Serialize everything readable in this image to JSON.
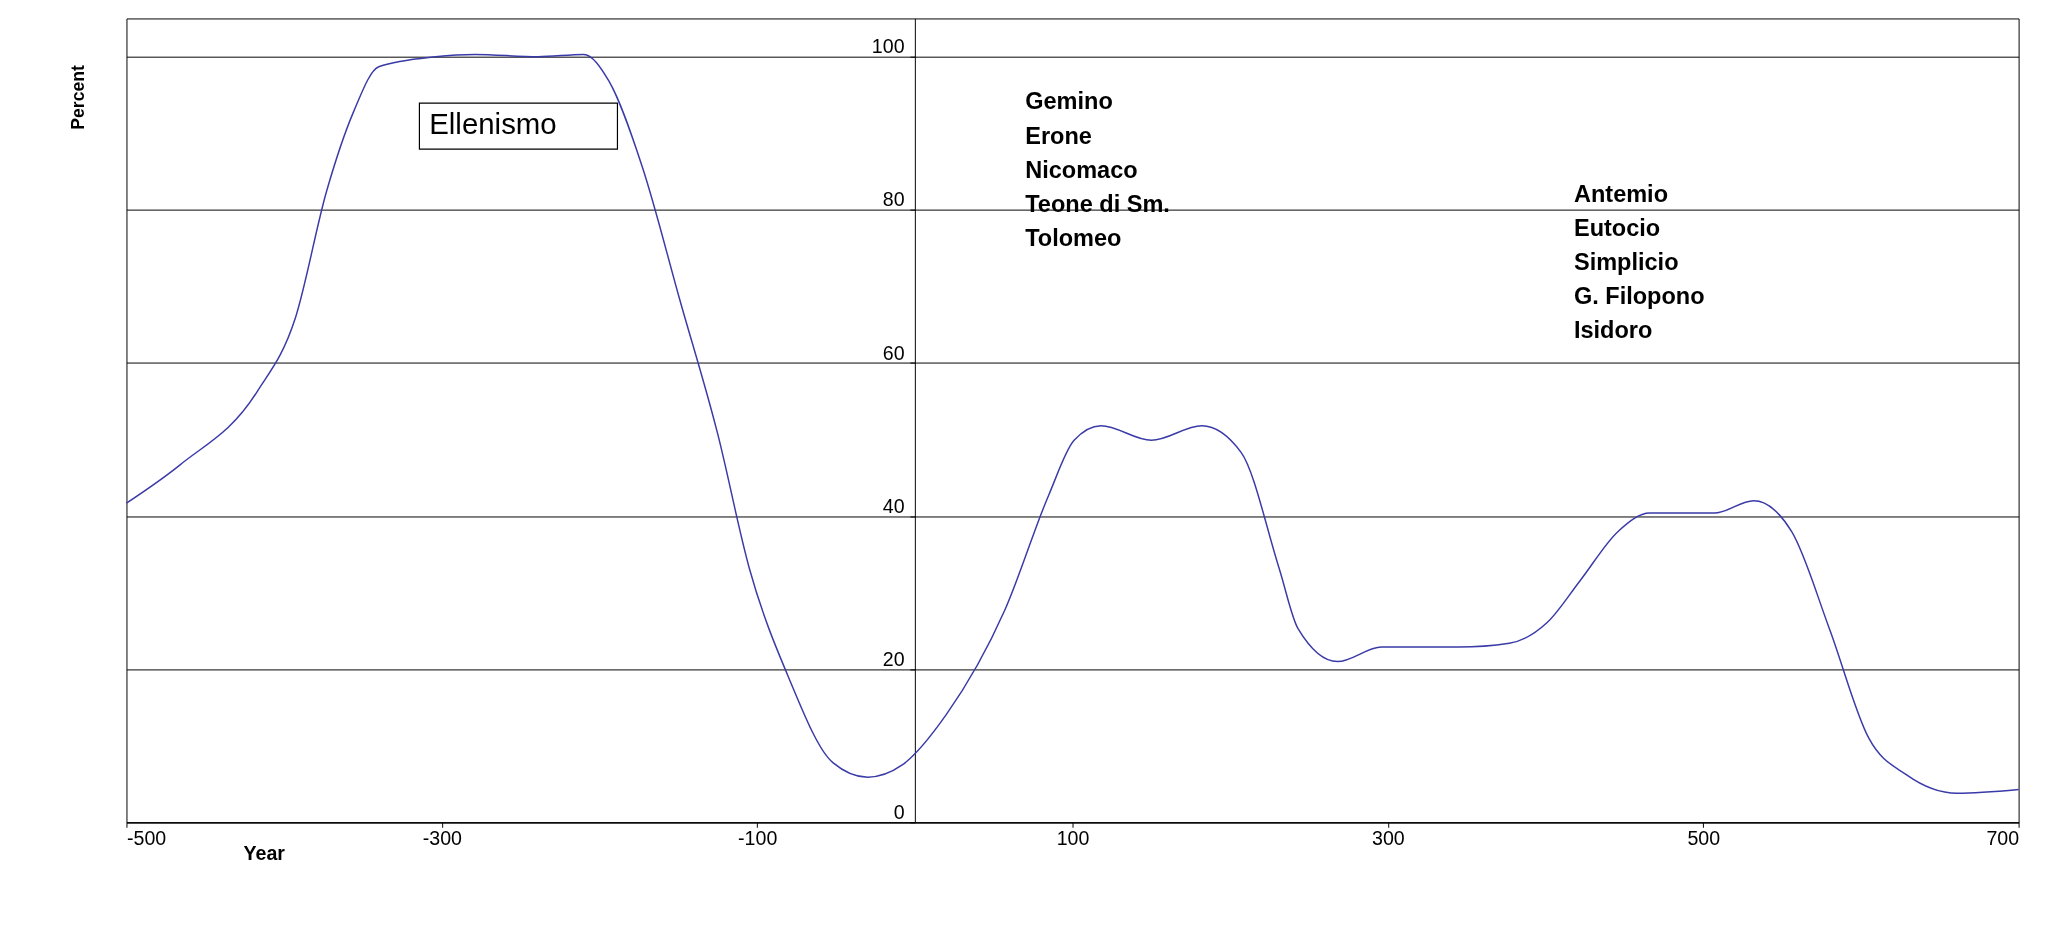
{
  "chart_data": {
    "type": "line",
    "xlabel": "Year",
    "ylabel": "Percent",
    "x": [
      -500,
      -466,
      -417,
      -393,
      -373,
      -356,
      -340,
      -304,
      -279,
      -239,
      -210,
      -194,
      -173,
      -149,
      -125,
      -105,
      -80,
      -52,
      -30,
      -8,
      20,
      57,
      85,
      101,
      118,
      150,
      182,
      207,
      231,
      243,
      268,
      296,
      345,
      377,
      401,
      422,
      446,
      466,
      507,
      532,
      556,
      580,
      605,
      629,
      661,
      700
    ],
    "series": [
      {
        "color": "#3a3aa8",
        "values": [
          41.7,
          46.7,
          56.3,
          65.8,
          82.5,
          92.8,
          98.7,
          100,
          100.3,
          100,
          100.3,
          96.8,
          85.7,
          68.2,
          50.7,
          33.2,
          18.9,
          7.8,
          5.9,
          7.5,
          14.1,
          27.7,
          42.8,
          49.9,
          51.8,
          49.9,
          51.8,
          48.3,
          33.2,
          25.3,
          21.0,
          22.9,
          22.9,
          23.4,
          26.1,
          31.6,
          38.0,
          40.4,
          40.4,
          42.0,
          38.0,
          25.3,
          11.0,
          6.2,
          3.8,
          4.3
        ]
      }
    ],
    "xlim": [
      -500,
      700
    ],
    "xticks": [
      -500,
      -300,
      -100,
      100,
      300,
      500,
      700
    ],
    "ylim": [
      0,
      105
    ],
    "yticks": [
      0,
      20,
      40,
      60,
      80,
      100
    ],
    "grid": "y",
    "marker": "none",
    "line_style": "solid",
    "annotations": [
      "Ellenismo",
      "Gemino\nErone\nNicomaco\nTeone di Sm.\nTolomeo",
      "Antemio\nEutocio\nSimplicio\nG. Filopono\nIsidoro"
    ]
  }
}
